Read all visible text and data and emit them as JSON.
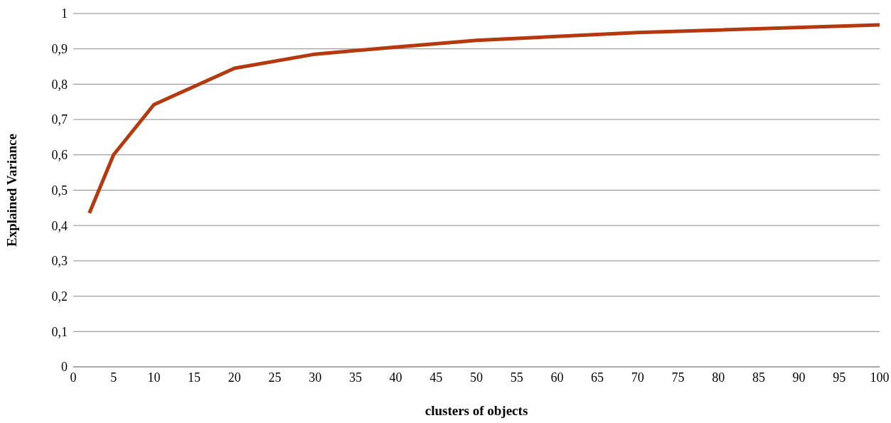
{
  "chart_data": {
    "type": "line",
    "xlabel": "clusters of objects",
    "ylabel": "Explained Variance",
    "x": [
      2,
      5,
      10,
      20,
      30,
      40,
      50,
      70,
      100
    ],
    "series": [
      {
        "color": "#b5390f",
        "values": [
          0.435,
          0.6,
          0.742,
          0.845,
          0.885,
          0.905,
          0.924,
          0.946,
          0.968
        ]
      }
    ],
    "xlim": [
      0,
      100
    ],
    "xticks": [
      0,
      5,
      10,
      15,
      20,
      25,
      30,
      35,
      40,
      45,
      50,
      55,
      60,
      65,
      70,
      75,
      80,
      85,
      90,
      95,
      100
    ],
    "ylim": [
      0,
      1
    ],
    "yticks": [
      0,
      {
        "value": 0.1,
        "label": "0,1"
      },
      {
        "value": 0.2,
        "label": "0,2"
      },
      {
        "value": 0.3,
        "label": "0,3"
      },
      {
        "value": 0.4,
        "label": "0,4"
      },
      {
        "value": 0.5,
        "label": "0,5"
      },
      {
        "value": 0.6,
        "label": "0,6"
      },
      {
        "value": 0.7,
        "label": "0,7"
      },
      {
        "value": 0.8,
        "label": "0,8"
      },
      {
        "value": 0.9,
        "label": "0,9"
      },
      1
    ],
    "grid": "y",
    "marker": "none",
    "line_style": "solid"
  }
}
